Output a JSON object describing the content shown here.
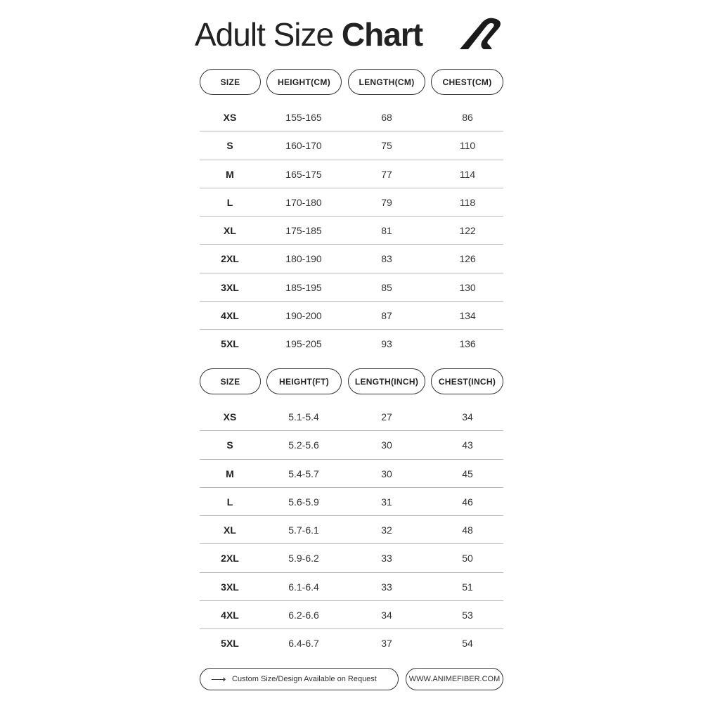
{
  "title": {
    "light": "Adult Size ",
    "bold": "Chart"
  },
  "logo": {
    "icon": "brand-logo-icon",
    "color": "#1a1a1a"
  },
  "tables": [
    {
      "headers": [
        "SIZE",
        "HEIGHT(CM)",
        "LENGTH(CM)",
        "CHEST(CM)"
      ],
      "rows": [
        [
          "XS",
          "155-165",
          "68",
          "86"
        ],
        [
          "S",
          "160-170",
          "75",
          "110"
        ],
        [
          "M",
          "165-175",
          "77",
          "114"
        ],
        [
          "L",
          "170-180",
          "79",
          "118"
        ],
        [
          "XL",
          "175-185",
          "81",
          "122"
        ],
        [
          "2XL",
          "180-190",
          "83",
          "126"
        ],
        [
          "3XL",
          "185-195",
          "85",
          "130"
        ],
        [
          "4XL",
          "190-200",
          "87",
          "134"
        ],
        [
          "5XL",
          "195-205",
          "93",
          "136"
        ]
      ]
    },
    {
      "headers": [
        "SIZE",
        "HEIGHT(FT)",
        "LENGTH(INCH)",
        "CHEST(INCH)"
      ],
      "rows": [
        [
          "XS",
          "5.1-5.4",
          "27",
          "34"
        ],
        [
          "S",
          "5.2-5.6",
          "30",
          "43"
        ],
        [
          "M",
          "5.4-5.7",
          "30",
          "45"
        ],
        [
          "L",
          "5.6-5.9",
          "31",
          "46"
        ],
        [
          "XL",
          "5.7-6.1",
          "32",
          "48"
        ],
        [
          "2XL",
          "5.9-6.2",
          "33",
          "50"
        ],
        [
          "3XL",
          "6.1-6.4",
          "33",
          "51"
        ],
        [
          "4XL",
          "6.2-6.6",
          "34",
          "53"
        ],
        [
          "5XL",
          "6.4-6.7",
          "37",
          "54"
        ]
      ]
    }
  ],
  "footer": {
    "custom_icon": "arrow-right-icon",
    "custom_label": "Custom Size/Design Available on Request",
    "website": "WWW.ANIMEFIBER.COM"
  }
}
